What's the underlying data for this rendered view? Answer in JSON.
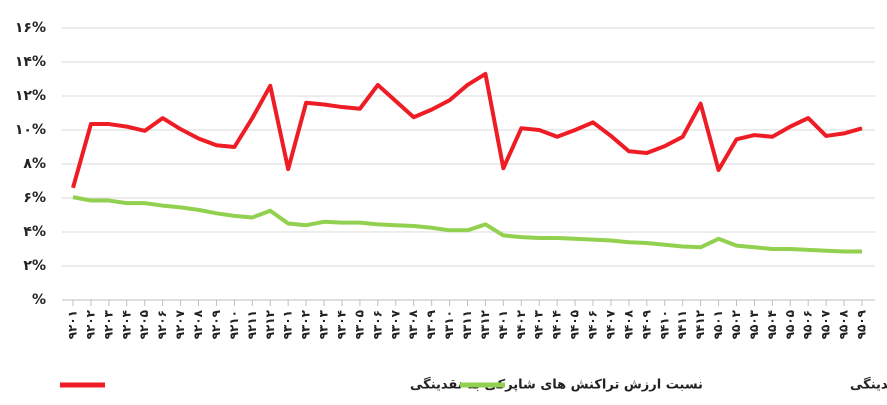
{
  "chart_data": {
    "type": "line",
    "categories": [
      "۹۲۰۱",
      "۹۲۰۲",
      "۹۲۰۳",
      "۹۲۰۴",
      "۹۲۰۵",
      "۹۲۰۶",
      "۹۲۰۷",
      "۹۲۰۸",
      "۹۲۰۹",
      "۹۲۱۰",
      "۹۲۱۱",
      "۹۲۱۲",
      "۹۳۰۱",
      "۹۳۰۲",
      "۹۳۰۳",
      "۹۳۰۴",
      "۹۳۰۵",
      "۹۳۰۶",
      "۹۳۰۷",
      "۹۳۰۸",
      "۹۳۰۹",
      "۹۳۱۰",
      "۹۳۱۱",
      "۹۳۱۲",
      "۹۴۰۱",
      "۹۴۰۲",
      "۹۴۰۳",
      "۹۴۰۴",
      "۹۴۰۵",
      "۹۴۰۶",
      "۹۴۰۷",
      "۹۴۰۸",
      "۹۴۰۹",
      "۹۴۱۰",
      "۹۴۱۱",
      "۹۴۱۲",
      "۹۵۰۱",
      "۹۵۰۲",
      "۹۵۰۳",
      "۹۵۰۴",
      "۹۵۰۵",
      "۹۵۰۶",
      "۹۵۰۷",
      "۹۵۰۸",
      "۹۵۰۹"
    ],
    "series": [
      {
        "name": "نسبت ارزش تراکنش های شاپرکی به نقدینگی",
        "color": "#ee1c24",
        "values": [
          6.6,
          10.35,
          10.35,
          10.2,
          9.95,
          10.7,
          10.05,
          9.5,
          9.1,
          9.0,
          10.7,
          12.6,
          7.7,
          11.6,
          11.5,
          11.35,
          11.25,
          12.65,
          11.7,
          10.75,
          11.2,
          11.75,
          12.65,
          13.3,
          7.75,
          10.1,
          10.0,
          9.6,
          10.0,
          10.45,
          9.65,
          8.75,
          8.65,
          9.05,
          9.6,
          11.55,
          7.65,
          9.45,
          9.7,
          9.6,
          10.2,
          10.7,
          9.65,
          9.8,
          10.1
        ]
      },
      {
        "name": "نسبت اسکناس و مسکوک در دست اشخاص به نقدینگی",
        "color": "#92d050",
        "values": [
          6.05,
          5.85,
          5.85,
          5.7,
          5.7,
          5.55,
          5.45,
          5.3,
          5.1,
          4.95,
          4.85,
          5.25,
          4.5,
          4.4,
          4.6,
          4.55,
          4.55,
          4.45,
          4.4,
          4.35,
          4.25,
          4.1,
          4.1,
          4.45,
          3.8,
          3.7,
          3.65,
          3.65,
          3.6,
          3.55,
          3.5,
          3.4,
          3.35,
          3.25,
          3.15,
          3.1,
          3.6,
          3.2,
          3.1,
          3.0,
          3.0,
          2.95,
          2.9,
          2.85,
          2.85
        ]
      }
    ],
    "ylim": [
      0,
      16
    ],
    "yticks": [
      {
        "value": 0,
        "label": "%"
      },
      {
        "value": 2,
        "label": "۲%"
      },
      {
        "value": 4,
        "label": "۴%"
      },
      {
        "value": 6,
        "label": "۶%"
      },
      {
        "value": 8,
        "label": "۸%"
      },
      {
        "value": 10,
        "label": "۱۰%"
      },
      {
        "value": 12,
        "label": "۱۲%"
      },
      {
        "value": 14,
        "label": "۱۴%"
      },
      {
        "value": 16,
        "label": "۱۶%"
      }
    ],
    "grid": true
  }
}
